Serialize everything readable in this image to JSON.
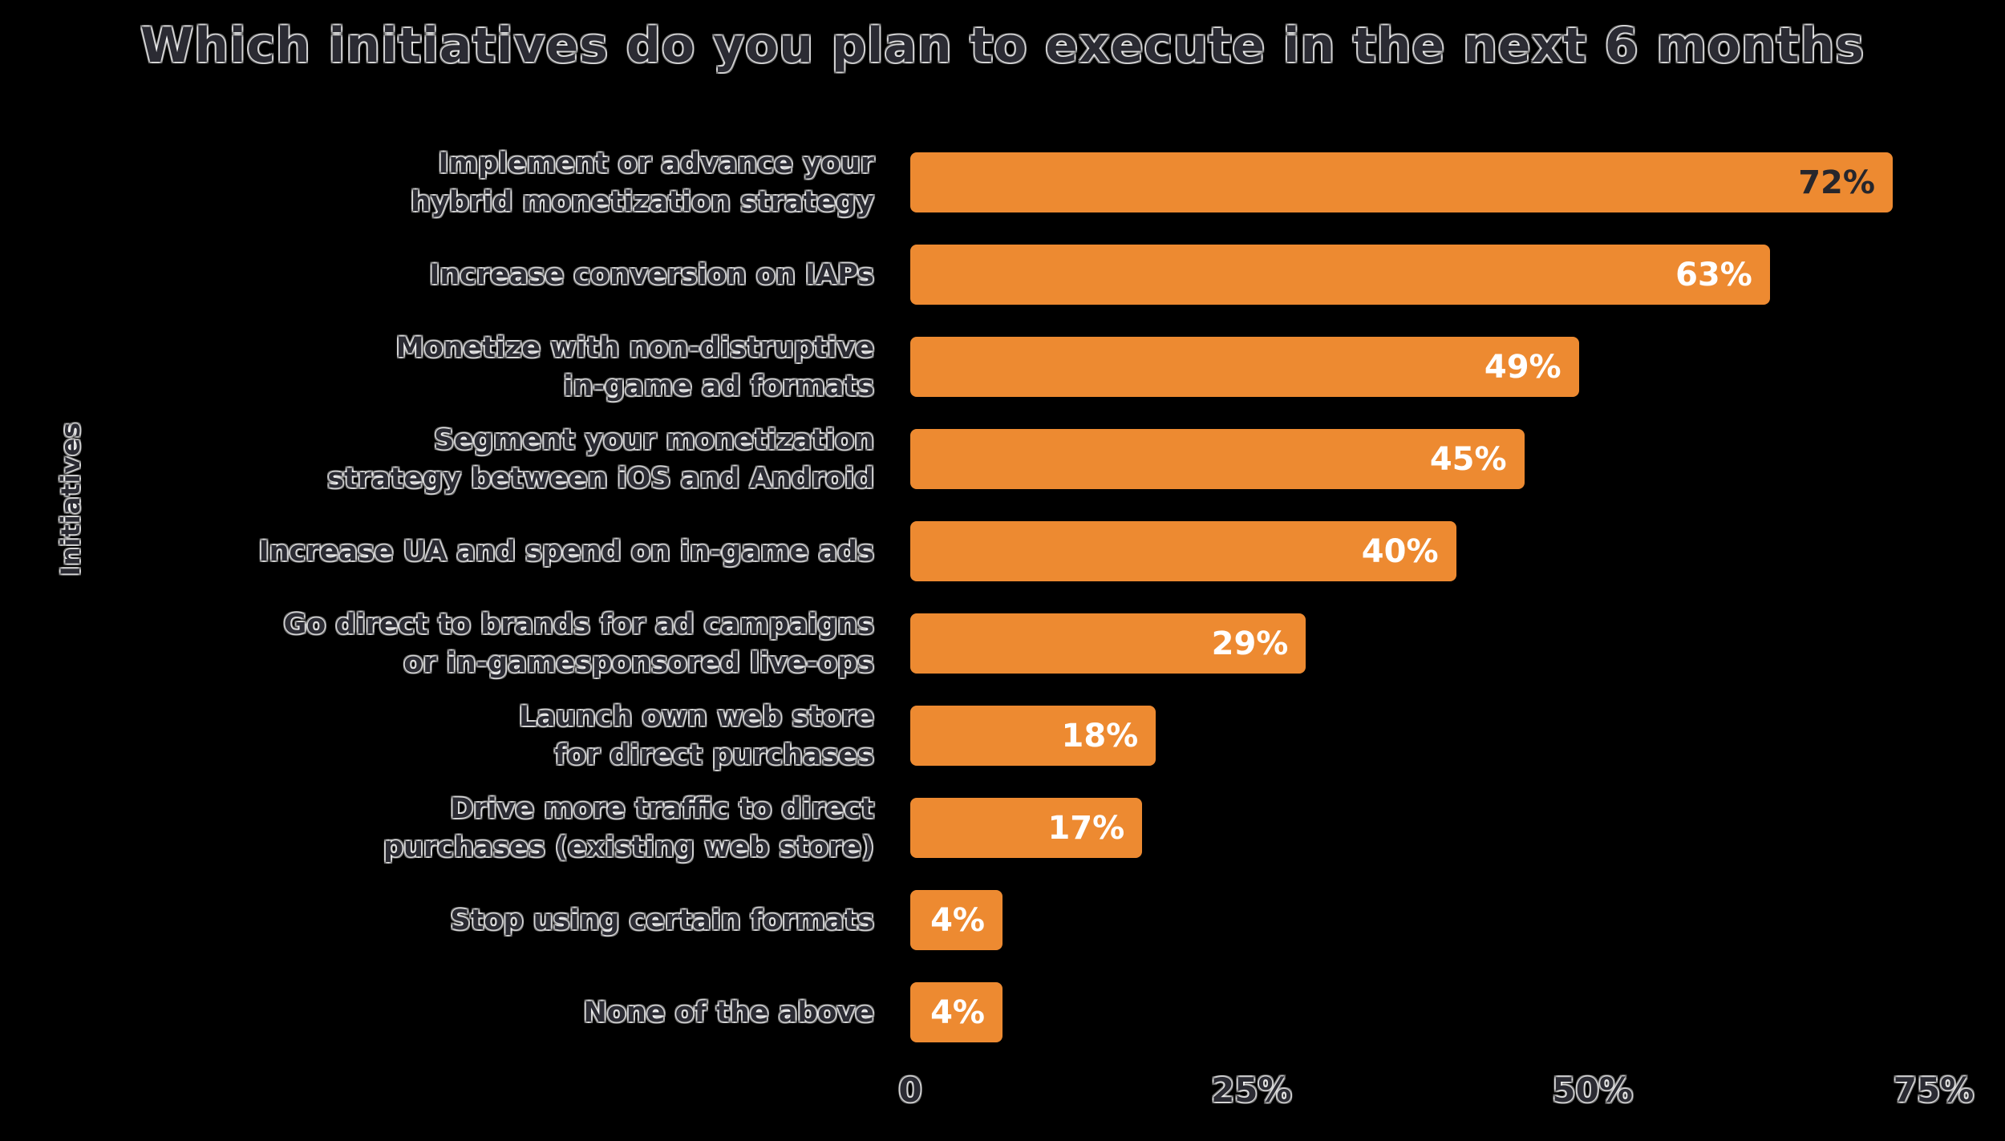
{
  "chart_data": {
    "type": "bar",
    "orientation": "horizontal",
    "title": "Which initiatives do you plan to execute in the next 6 months",
    "xlabel": "",
    "ylabel": "Initiatives",
    "categories": [
      "Implement or advance your\nhybrid monetization strategy",
      "Increase conversion on IAPs",
      "Monetize with non-distruptive\nin-game ad formats",
      "Segment your monetization\nstrategy between iOS and Android",
      "Increase UA and spend on in-game ads",
      "Go direct to brands for ad campaigns\nor in-gamesponsored live-ops",
      "Launch own web store\nfor direct purchases",
      "Drive more traffic to direct\npurchases (existing web store)",
      "Stop using certain formats",
      "None of the above"
    ],
    "values": [
      72,
      63,
      49,
      45,
      40,
      29,
      18,
      17,
      4,
      4
    ],
    "value_labels": [
      "72%",
      "63%",
      "49%",
      "45%",
      "40%",
      "29%",
      "18%",
      "17%",
      "4%",
      "4%"
    ],
    "value_text_colors": [
      "#26262c",
      "#ffffff",
      "#ffffff",
      "#ffffff",
      "#ffffff",
      "#ffffff",
      "#ffffff",
      "#ffffff",
      "#ffffff",
      "#ffffff"
    ],
    "x_ticks": [
      {
        "label": "0",
        "value": 0
      },
      {
        "label": "25%",
        "value": 25
      },
      {
        "label": "50%",
        "value": 50
      },
      {
        "label": "75%",
        "value": 75
      }
    ],
    "xlim": [
      0,
      75
    ],
    "bar_color": "#ED8A31",
    "background_color": "#000000",
    "text_color": "#2b2b33",
    "legend": "none",
    "grid": "off"
  }
}
